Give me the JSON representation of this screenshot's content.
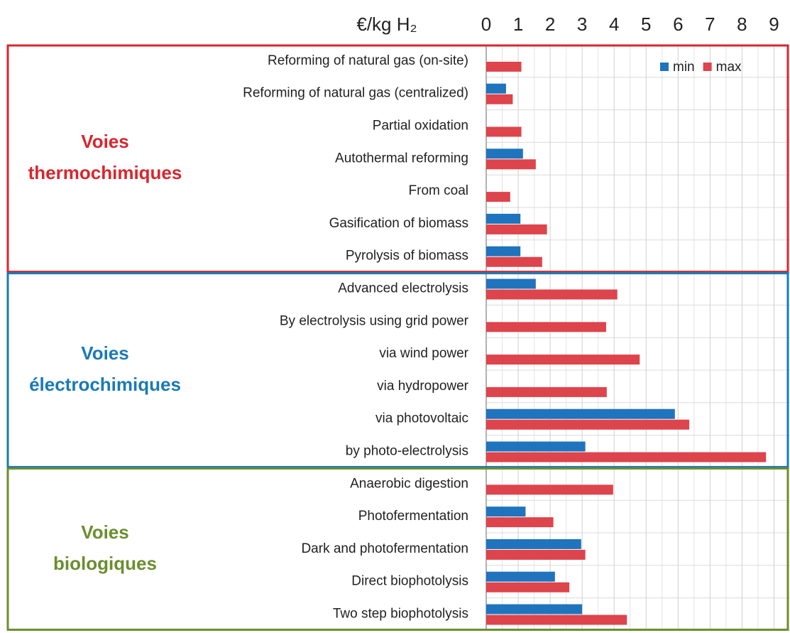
{
  "chart_data": {
    "type": "hbar",
    "x_label": "€/kg H₂",
    "xlim": [
      0,
      9.5
    ],
    "xticks": [
      0,
      1,
      2,
      3,
      4,
      5,
      6,
      7,
      8,
      9
    ],
    "grid": true,
    "legend": "upper right",
    "groups": [
      {
        "label": [
          "Voies",
          "thermochimiques"
        ],
        "color": "#d9262e",
        "categories": [
          "Reforming of natural gas (on-site)",
          "Reforming of natural gas (centralized)",
          "Partial  oxidation",
          "Autothermal reforming",
          "From coal",
          "Gasification of biomass",
          "Pyrolysis of biomass"
        ]
      },
      {
        "label": [
          "Voies",
          "électrochimiques"
        ],
        "color": "#1a7ab5",
        "categories": [
          "Advanced electrolysis",
          "By electrolysis using grid power",
          "via wind power",
          "via hydropower",
          "via photovoltaic",
          "by photo-electrolysis"
        ]
      },
      {
        "label": [
          "Voies",
          "biologiques"
        ],
        "color": "#6b8e2e",
        "categories": [
          "Anaerobic digestion",
          "Photofermentation",
          "Dark and photofermentation",
          "Direct biophotolysis",
          "Two step biophotolysis"
        ]
      }
    ],
    "series": [
      {
        "name": "min",
        "color": "#1f74bd",
        "values": [
          null,
          0.62,
          null,
          1.15,
          null,
          1.07,
          1.07,
          1.55,
          null,
          null,
          null,
          5.9,
          3.1,
          null,
          1.23,
          2.97,
          2.15,
          3.0
        ]
      },
      {
        "name": "max",
        "color": "#dd444c",
        "values": [
          1.1,
          0.83,
          1.1,
          1.55,
          0.75,
          1.9,
          1.75,
          4.1,
          3.75,
          4.8,
          3.77,
          6.35,
          8.75,
          3.97,
          2.1,
          3.1,
          2.6,
          4.4
        ]
      }
    ]
  }
}
